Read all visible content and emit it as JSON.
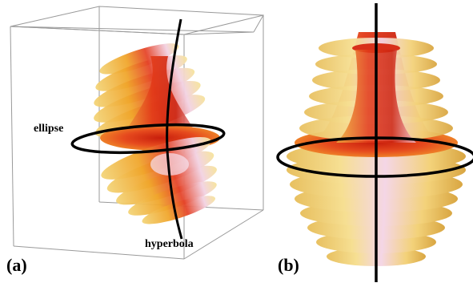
{
  "panels": [
    {
      "label": "(a)"
    },
    {
      "label": "(b)"
    }
  ],
  "annotations": {
    "ellipse": "ellipse",
    "hyperbola": "hyperbola"
  },
  "colors": {
    "surface_core": "#e33b1a",
    "surface_mid": "#f5a623",
    "surface_rim": "#f6e08a",
    "highlight": "#f2d8e8",
    "curve": "#000000",
    "box_edge": "#9a9a9a"
  }
}
